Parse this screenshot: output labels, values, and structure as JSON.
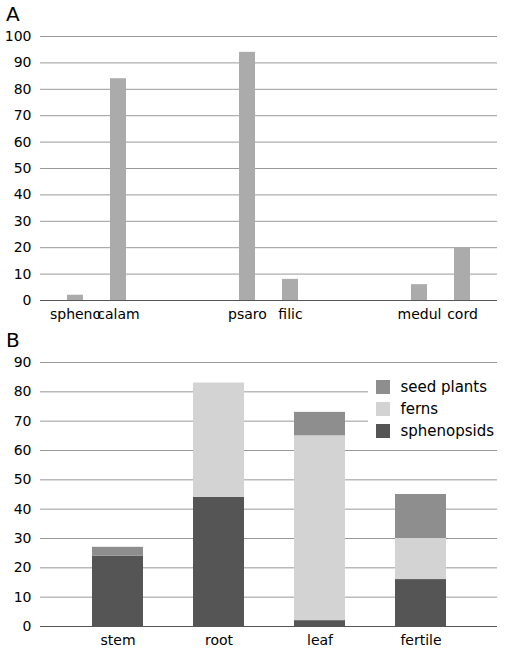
{
  "chart_data": [
    {
      "type": "bar",
      "title": "A",
      "categories": [
        "spheno",
        "calam",
        null,
        null,
        "psaro",
        "filic",
        null,
        null,
        "medul",
        "cord"
      ],
      "values": [
        2,
        84,
        null,
        null,
        94,
        8,
        null,
        null,
        6,
        20
      ],
      "color": "#ababab",
      "ylim": [
        0,
        100
      ],
      "yticks": [
        0,
        10,
        20,
        30,
        40,
        50,
        60,
        70,
        80,
        90,
        100
      ],
      "grid": true
    },
    {
      "type": "bar",
      "title": "B",
      "stacked": true,
      "legend": "top-right",
      "categories": [
        "stem",
        "root",
        "leaf",
        "fertile"
      ],
      "series": [
        {
          "name": "sphenopsids",
          "color": "#555555",
          "values": [
            24,
            44,
            2,
            16
          ]
        },
        {
          "name": "ferns",
          "color": "#d3d3d3",
          "values": [
            0,
            39,
            63,
            14
          ]
        },
        {
          "name": "seed plants",
          "color": "#8e8e8e",
          "values": [
            3,
            0,
            8,
            15
          ]
        }
      ],
      "ylim": [
        0,
        90
      ],
      "yticks": [
        0,
        10,
        20,
        30,
        40,
        50,
        60,
        70,
        80,
        90
      ],
      "grid": true
    }
  ]
}
